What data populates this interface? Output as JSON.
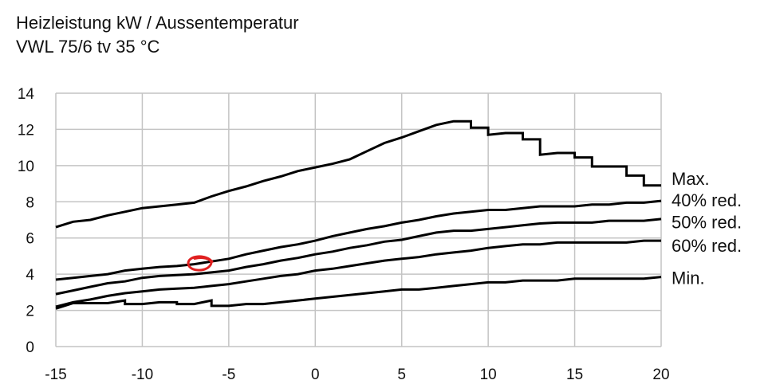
{
  "chart_data": {
    "type": "line",
    "title": "Heizleistung kW / Aussentemperatur",
    "subtitle": "VWL 75/6 tv 35 °C",
    "xlabel": "",
    "ylabel": "",
    "xlim": [
      -15,
      20
    ],
    "ylim": [
      0,
      14
    ],
    "xticks": [
      -15,
      -10,
      -5,
      0,
      5,
      10,
      15,
      20
    ],
    "yticks": [
      0,
      2,
      4,
      6,
      8,
      10,
      12,
      14
    ],
    "xtick_labels": [
      "-15",
      "-10",
      "-5",
      "0",
      "5",
      "10",
      "15",
      "20"
    ],
    "ytick_labels": [
      "0",
      "2",
      "4",
      "6",
      "8",
      "10",
      "12",
      "14"
    ],
    "grid": true,
    "series": [
      {
        "name": "Max.",
        "color": "#000000",
        "points": [
          [
            -15,
            6.6
          ],
          [
            -14,
            6.9
          ],
          [
            -13,
            7.0
          ],
          [
            -12,
            7.25
          ],
          [
            -11,
            7.45
          ],
          [
            -10,
            7.65
          ],
          [
            -9,
            7.75
          ],
          [
            -8,
            7.85
          ],
          [
            -7,
            7.95
          ],
          [
            -6,
            8.3
          ],
          [
            -5,
            8.6
          ],
          [
            -4,
            8.85
          ],
          [
            -3,
            9.15
          ],
          [
            -2,
            9.4
          ],
          [
            -1,
            9.7
          ],
          [
            0,
            9.9
          ],
          [
            1,
            10.1
          ],
          [
            2,
            10.35
          ],
          [
            3,
            10.8
          ],
          [
            4,
            11.25
          ],
          [
            5,
            11.55
          ],
          [
            6,
            11.9
          ],
          [
            7,
            12.25
          ],
          [
            8,
            12.45
          ],
          [
            9,
            12.45
          ],
          [
            9,
            12.1
          ],
          [
            10,
            12.1
          ],
          [
            10,
            11.7
          ],
          [
            11,
            11.8
          ],
          [
            12,
            11.8
          ],
          [
            12,
            11.45
          ],
          [
            13,
            11.45
          ],
          [
            13,
            10.6
          ],
          [
            14,
            10.7
          ],
          [
            15,
            10.7
          ],
          [
            15,
            10.45
          ],
          [
            16,
            10.45
          ],
          [
            16,
            9.95
          ],
          [
            17,
            9.95
          ],
          [
            18,
            9.95
          ],
          [
            18,
            9.45
          ],
          [
            19,
            9.45
          ],
          [
            19,
            8.9
          ],
          [
            20,
            8.9
          ]
        ],
        "label_value": 9.3
      },
      {
        "name": "40% red.",
        "color": "#000000",
        "points": [
          [
            -15,
            3.7
          ],
          [
            -14,
            3.8
          ],
          [
            -13,
            3.9
          ],
          [
            -12,
            4.0
          ],
          [
            -11,
            4.2
          ],
          [
            -10,
            4.3
          ],
          [
            -9,
            4.4
          ],
          [
            -8,
            4.45
          ],
          [
            -7,
            4.55
          ],
          [
            -6,
            4.7
          ],
          [
            -5,
            4.85
          ],
          [
            -4,
            5.1
          ],
          [
            -3,
            5.3
          ],
          [
            -2,
            5.5
          ],
          [
            -1,
            5.65
          ],
          [
            0,
            5.85
          ],
          [
            1,
            6.1
          ],
          [
            2,
            6.3
          ],
          [
            3,
            6.5
          ],
          [
            4,
            6.65
          ],
          [
            5,
            6.85
          ],
          [
            6,
            7.0
          ],
          [
            7,
            7.2
          ],
          [
            8,
            7.35
          ],
          [
            9,
            7.45
          ],
          [
            10,
            7.55
          ],
          [
            11,
            7.55
          ],
          [
            12,
            7.65
          ],
          [
            13,
            7.75
          ],
          [
            14,
            7.75
          ],
          [
            15,
            7.75
          ],
          [
            16,
            7.85
          ],
          [
            17,
            7.85
          ],
          [
            18,
            7.95
          ],
          [
            19,
            7.95
          ],
          [
            20,
            8.05
          ]
        ],
        "label_value": 8.1
      },
      {
        "name": "50% red.",
        "color": "#000000",
        "points": [
          [
            -15,
            2.9
          ],
          [
            -14,
            3.1
          ],
          [
            -13,
            3.3
          ],
          [
            -12,
            3.5
          ],
          [
            -11,
            3.6
          ],
          [
            -10,
            3.8
          ],
          [
            -9,
            3.9
          ],
          [
            -8,
            3.95
          ],
          [
            -7,
            4.0
          ],
          [
            -6,
            4.1
          ],
          [
            -5,
            4.2
          ],
          [
            -4,
            4.4
          ],
          [
            -3,
            4.55
          ],
          [
            -2,
            4.75
          ],
          [
            -1,
            4.9
          ],
          [
            0,
            5.1
          ],
          [
            1,
            5.25
          ],
          [
            2,
            5.45
          ],
          [
            3,
            5.6
          ],
          [
            4,
            5.8
          ],
          [
            5,
            5.9
          ],
          [
            6,
            6.1
          ],
          [
            7,
            6.3
          ],
          [
            8,
            6.4
          ],
          [
            9,
            6.4
          ],
          [
            10,
            6.5
          ],
          [
            11,
            6.6
          ],
          [
            12,
            6.7
          ],
          [
            13,
            6.8
          ],
          [
            14,
            6.85
          ],
          [
            15,
            6.85
          ],
          [
            16,
            6.85
          ],
          [
            17,
            6.95
          ],
          [
            18,
            6.95
          ],
          [
            19,
            6.95
          ],
          [
            20,
            7.05
          ]
        ],
        "label_value": 6.9
      },
      {
        "name": "60% red.",
        "color": "#000000",
        "points": [
          [
            -15,
            2.2
          ],
          [
            -14,
            2.45
          ],
          [
            -13,
            2.6
          ],
          [
            -12,
            2.8
          ],
          [
            -11,
            2.95
          ],
          [
            -10,
            3.05
          ],
          [
            -9,
            3.15
          ],
          [
            -8,
            3.2
          ],
          [
            -7,
            3.25
          ],
          [
            -6,
            3.35
          ],
          [
            -5,
            3.45
          ],
          [
            -4,
            3.6
          ],
          [
            -3,
            3.75
          ],
          [
            -2,
            3.9
          ],
          [
            -1,
            4.0
          ],
          [
            0,
            4.2
          ],
          [
            1,
            4.3
          ],
          [
            2,
            4.45
          ],
          [
            3,
            4.6
          ],
          [
            4,
            4.75
          ],
          [
            5,
            4.85
          ],
          [
            6,
            4.95
          ],
          [
            7,
            5.1
          ],
          [
            8,
            5.2
          ],
          [
            9,
            5.3
          ],
          [
            10,
            5.45
          ],
          [
            11,
            5.55
          ],
          [
            12,
            5.65
          ],
          [
            13,
            5.65
          ],
          [
            14,
            5.75
          ],
          [
            15,
            5.75
          ],
          [
            16,
            5.75
          ],
          [
            17,
            5.75
          ],
          [
            18,
            5.75
          ],
          [
            19,
            5.85
          ],
          [
            20,
            5.85
          ]
        ],
        "label_value": 5.6
      },
      {
        "name": "Min.",
        "color": "#000000",
        "points": [
          [
            -15,
            2.1
          ],
          [
            -14,
            2.4
          ],
          [
            -13,
            2.4
          ],
          [
            -12,
            2.4
          ],
          [
            -11,
            2.55
          ],
          [
            -11,
            2.35
          ],
          [
            -10,
            2.35
          ],
          [
            -9,
            2.45
          ],
          [
            -8,
            2.45
          ],
          [
            -8,
            2.35
          ],
          [
            -7,
            2.35
          ],
          [
            -6,
            2.55
          ],
          [
            -6,
            2.25
          ],
          [
            -5,
            2.25
          ],
          [
            -4,
            2.35
          ],
          [
            -3,
            2.35
          ],
          [
            -2,
            2.45
          ],
          [
            -1,
            2.55
          ],
          [
            0,
            2.65
          ],
          [
            1,
            2.75
          ],
          [
            2,
            2.85
          ],
          [
            3,
            2.95
          ],
          [
            4,
            3.05
          ],
          [
            5,
            3.15
          ],
          [
            6,
            3.15
          ],
          [
            7,
            3.25
          ],
          [
            8,
            3.35
          ],
          [
            9,
            3.45
          ],
          [
            10,
            3.55
          ],
          [
            11,
            3.55
          ],
          [
            12,
            3.65
          ],
          [
            13,
            3.65
          ],
          [
            14,
            3.65
          ],
          [
            15,
            3.75
          ],
          [
            16,
            3.75
          ],
          [
            17,
            3.75
          ],
          [
            18,
            3.75
          ],
          [
            19,
            3.75
          ],
          [
            20,
            3.85
          ]
        ],
        "label_value": 3.8
      }
    ],
    "annotation": {
      "type": "hand-drawn-circle",
      "color": "#e02020",
      "x": -6.7,
      "y": 4.6
    }
  }
}
